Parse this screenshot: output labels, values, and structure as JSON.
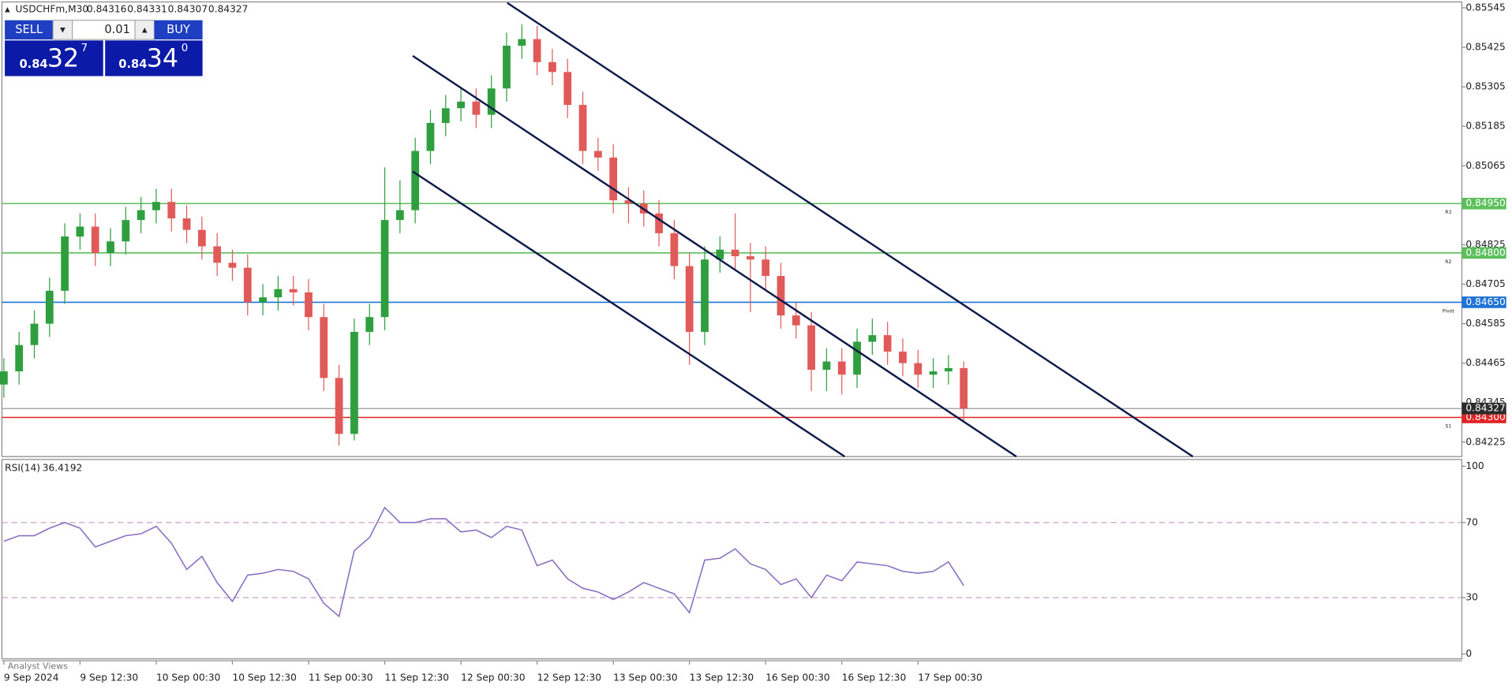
{
  "header": {
    "symbol": "USDCHFm,M30",
    "quote": [
      "0.84316",
      "0.84331",
      "0.84307",
      "0.84327"
    ]
  },
  "trade_panel": {
    "sell": "SELL",
    "buy": "BUY",
    "volume": "0.01",
    "bid": {
      "big": "0.84",
      "pips": "32",
      "point": "7"
    },
    "ask": {
      "big": "0.84",
      "pips": "34",
      "point": "0"
    }
  },
  "footer": "Analyst Views",
  "chart_data": [
    {
      "type": "candlestick",
      "categories": [
        "9 Sep 2024",
        null,
        null,
        null,
        null,
        "9 Sep 12:30",
        null,
        null,
        null,
        null,
        "10 Sep 00:30",
        null,
        null,
        null,
        null,
        "10 Sep 12:30",
        null,
        null,
        null,
        null,
        "11 Sep 00:30",
        null,
        null,
        null,
        null,
        "11 Sep 12:30",
        null,
        null,
        null,
        null,
        "12 Sep 00:30",
        null,
        null,
        null,
        null,
        "12 Sep 12:30",
        null,
        null,
        null,
        null,
        "13 Sep 00:30",
        null,
        null,
        null,
        null,
        "13 Sep 12:30",
        null,
        null,
        null,
        null,
        "16 Sep 00:30",
        null,
        null,
        null,
        null,
        "16 Sep 12:30",
        null,
        null,
        null,
        null,
        "17 Sep 00:30",
        null,
        null,
        null
      ],
      "open": [
        0.844,
        0.8444,
        0.8452,
        0.84585,
        0.84685,
        0.8485,
        0.8488,
        0.848,
        0.84835,
        0.849,
        0.8493,
        0.84955,
        0.84905,
        0.8487,
        0.8482,
        0.8477,
        0.84755,
        0.8465,
        0.84665,
        0.8469,
        0.8468,
        0.84605,
        0.8442,
        0.8425,
        0.8456,
        0.84605,
        0.849,
        0.8493,
        0.8511,
        0.85195,
        0.8524,
        0.8526,
        0.8522,
        0.853,
        0.8543,
        0.8545,
        0.8538,
        0.8535,
        0.8525,
        0.8511,
        0.8509,
        0.8496,
        0.8495,
        0.8492,
        0.8486,
        0.8476,
        0.8456,
        0.8478,
        0.8481,
        0.8479,
        0.8478,
        0.8473,
        0.8461,
        0.8458,
        0.84445,
        0.8447,
        0.8443,
        0.8453,
        0.8455,
        0.845,
        0.84465,
        0.8443,
        0.8444,
        0.8445
      ],
      "high": [
        0.8448,
        0.8456,
        0.84625,
        0.84725,
        0.8489,
        0.8492,
        0.8492,
        0.84875,
        0.8494,
        0.8497,
        0.84995,
        0.84995,
        0.84945,
        0.8491,
        0.8486,
        0.8481,
        0.84795,
        0.84705,
        0.8473,
        0.8473,
        0.8472,
        0.84645,
        0.8446,
        0.846,
        0.84645,
        0.8506,
        0.8502,
        0.8515,
        0.85235,
        0.8528,
        0.853,
        0.853,
        0.8534,
        0.8547,
        0.85495,
        0.8549,
        0.8542,
        0.8539,
        0.8529,
        0.8515,
        0.8513,
        0.85,
        0.8499,
        0.8496,
        0.849,
        0.848,
        0.8482,
        0.8485,
        0.8492,
        0.8483,
        0.8482,
        0.8477,
        0.8465,
        0.8462,
        0.8451,
        0.8451,
        0.8457,
        0.846,
        0.8459,
        0.8454,
        0.84505,
        0.8448,
        0.8449,
        0.8447
      ],
      "low": [
        0.8436,
        0.844,
        0.8448,
        0.84545,
        0.84645,
        0.8481,
        0.8476,
        0.8476,
        0.84795,
        0.8486,
        0.8489,
        0.84865,
        0.8483,
        0.8478,
        0.8473,
        0.84715,
        0.8461,
        0.8461,
        0.84625,
        0.8464,
        0.84565,
        0.8438,
        0.84215,
        0.8423,
        0.8452,
        0.84565,
        0.8486,
        0.8489,
        0.8507,
        0.85155,
        0.852,
        0.8518,
        0.8518,
        0.8526,
        0.8539,
        0.8534,
        0.8531,
        0.8521,
        0.8507,
        0.8505,
        0.8492,
        0.8489,
        0.8488,
        0.8482,
        0.8472,
        0.8446,
        0.8452,
        0.8474,
        0.8475,
        0.8462,
        0.8469,
        0.8457,
        0.8454,
        0.8438,
        0.8438,
        0.8437,
        0.8439,
        0.8449,
        0.8446,
        0.84425,
        0.8439,
        0.8439,
        0.844,
        0.8429
      ],
      "close": [
        0.8444,
        0.8452,
        0.84585,
        0.84685,
        0.8485,
        0.8488,
        0.848,
        0.84835,
        0.849,
        0.8493,
        0.84955,
        0.84905,
        0.8487,
        0.8482,
        0.8477,
        0.84755,
        0.8465,
        0.84665,
        0.8469,
        0.8468,
        0.84605,
        0.8442,
        0.8425,
        0.8456,
        0.84605,
        0.849,
        0.8493,
        0.8511,
        0.85195,
        0.8524,
        0.8526,
        0.8522,
        0.853,
        0.8543,
        0.8545,
        0.8538,
        0.8535,
        0.8525,
        0.8511,
        0.8509,
        0.8496,
        0.8495,
        0.8492,
        0.8486,
        0.8476,
        0.8456,
        0.8478,
        0.8481,
        0.8479,
        0.8478,
        0.8473,
        0.8461,
        0.8458,
        0.84445,
        0.8447,
        0.8443,
        0.8453,
        0.8455,
        0.845,
        0.84465,
        0.8443,
        0.8444,
        0.8445,
        0.84327
      ],
      "up_color": "#2e9e3e",
      "down_color": "#e05a5a",
      "ylim": [
        0.84181,
        0.85563
      ],
      "yticks": [
        0.85545,
        0.85425,
        0.85305,
        0.85185,
        0.85065,
        0.84825,
        0.84705,
        0.84585,
        0.84465,
        0.84345,
        0.84225
      ],
      "levels": [
        {
          "name": "R3",
          "value": 0.8495,
          "value_label": "0.84950",
          "color": "#5cbf5c"
        },
        {
          "name": "R2",
          "value": 0.848,
          "value_label": "0.84800",
          "color": "#5cbf5c"
        },
        {
          "name": "Pivot",
          "value": 0.8465,
          "value_label": "0.84650",
          "color": "#1f73d6"
        },
        {
          "name": "S1",
          "value": 0.843,
          "value_label": "0.84300",
          "color": "#e02424"
        }
      ],
      "current_price": 0.84327,
      "current_color": "#2b2b2b"
    },
    {
      "type": "line",
      "title": "RSI(14)",
      "color": "#8b70c4",
      "values": [
        60,
        63,
        63,
        67,
        70,
        67,
        57,
        60,
        63,
        64,
        68,
        59,
        45,
        52,
        38,
        28,
        42,
        43,
        45,
        44,
        40,
        27,
        20,
        55,
        62,
        78,
        70,
        70,
        72,
        72,
        65,
        66,
        62,
        68,
        66,
        47,
        50,
        40,
        35,
        33,
        29,
        33,
        38,
        35,
        32,
        22,
        50,
        51,
        56,
        48,
        45,
        37,
        40,
        30,
        42,
        39,
        49,
        48,
        47,
        44,
        43,
        44,
        49,
        36.4192
      ],
      "ylim": [
        -2.6,
        103.6
      ],
      "yticks": [
        100,
        70,
        30,
        0
      ],
      "dashed_levels": [
        70,
        30
      ],
      "level_color": "#caa2ca"
    }
  ]
}
